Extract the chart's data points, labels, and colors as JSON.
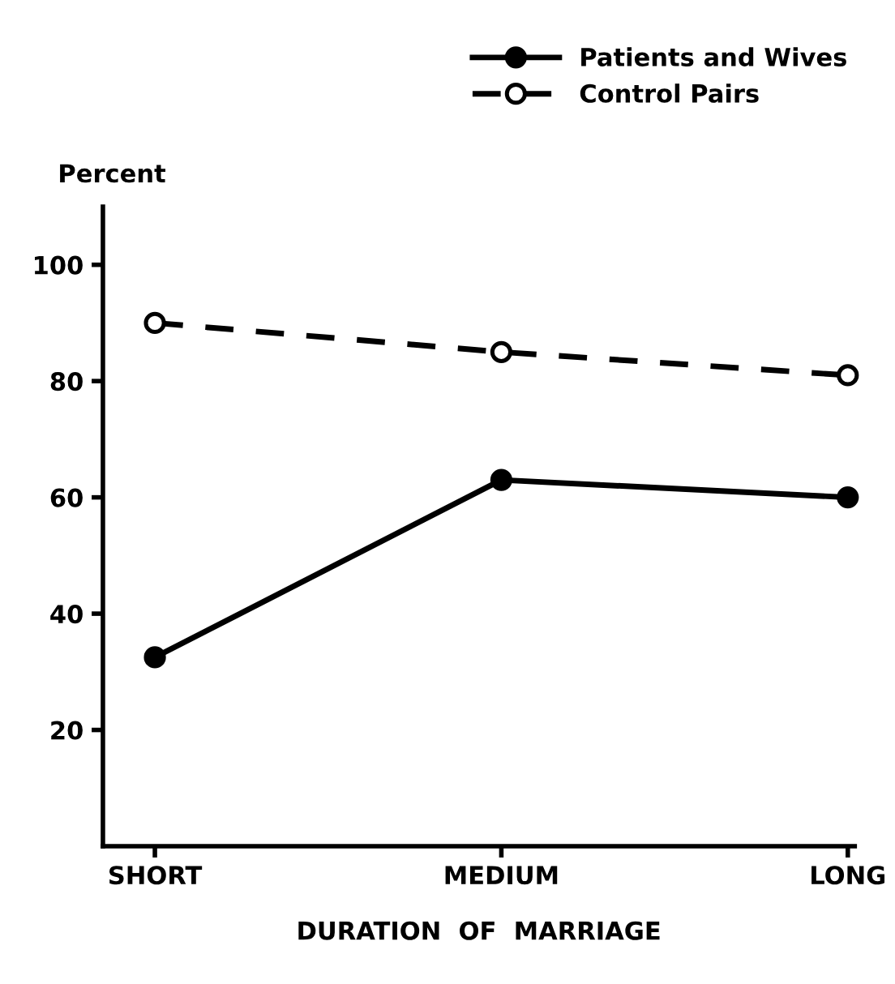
{
  "chart_data": {
    "type": "line",
    "ylabel": "Percent",
    "xlabel": "DURATION  OF  MARRIAGE",
    "categories": [
      "SHORT",
      "MEDIUM",
      "LONG"
    ],
    "series": [
      {
        "name": "Patients and Wives",
        "color": "#000000",
        "values": [
          32.5,
          63,
          60
        ],
        "marker": "circle",
        "line_style": "solid"
      },
      {
        "name": "Control Pairs",
        "color": "#000000",
        "values": [
          90,
          85,
          81
        ],
        "marker": "circle",
        "line_style": "dashed"
      }
    ],
    "ylim": [
      0,
      110
    ],
    "yticks": [
      20,
      40,
      60,
      80,
      100
    ],
    "grid": false,
    "legend": "top right"
  }
}
